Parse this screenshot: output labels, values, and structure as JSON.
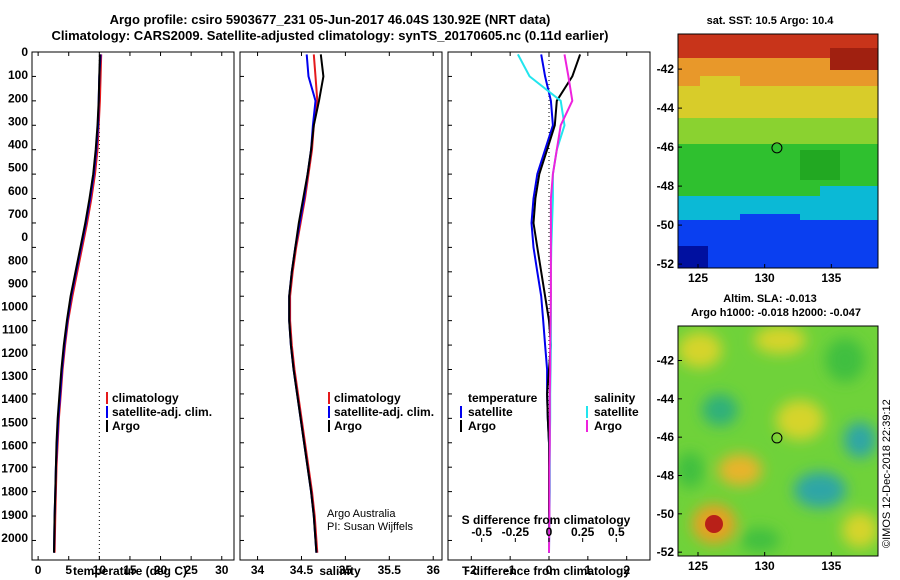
{
  "page": {
    "title_line1": "Argo profile: csiro 5903677_231 05-Jun-2017 46.04S 130.92E (NRT data)",
    "title_line2": "Climatology: CARS2009. Satellite-adjusted climatology: synTS_20170605.nc (0.11d earlier)",
    "side_stamp": "©IMOS 12-Dec-2018 22:39:12"
  },
  "colors": {
    "red": "#e41a1c",
    "blue": "#0000ee",
    "black": "#000000",
    "cyan": "#22e5ee",
    "magenta": "#ee22dd"
  },
  "chart_data": [
    {
      "type": "line",
      "panel": "temperature",
      "xlabel": "temperature (deg C)",
      "xlim": [
        -1,
        32
      ],
      "xticks": [
        0,
        5,
        10,
        15,
        20,
        25,
        30
      ],
      "xtick_labels": [
        "0",
        "5",
        "10",
        "15",
        "20",
        "25",
        "30"
      ],
      "ylim": [
        0,
        2080
      ],
      "yticks": [
        0,
        100,
        200,
        300,
        400,
        500,
        600,
        700,
        800,
        900,
        1000,
        1100,
        1200,
        1300,
        1400,
        1500,
        1600,
        1700,
        1800,
        1900,
        2000
      ],
      "ytick_labels": [
        "0",
        "100",
        "200",
        "300",
        "400",
        "500",
        "600",
        "700",
        "0",
        "800",
        "900",
        "1000",
        "1100",
        "1200",
        "1300",
        "1400",
        "1500",
        "1600",
        "1700",
        "1800",
        "1900",
        "2000"
      ],
      "legend": [
        "climatology",
        "satellite-adj. clim.",
        "Argo"
      ],
      "series": [
        {
          "name": "climatology",
          "color": "red",
          "x": [
            10.3,
            10.2,
            10.1,
            9.9,
            9.7,
            9.3,
            8.7,
            8.0,
            7.2,
            6.4,
            5.6,
            4.9,
            4.4,
            4.0,
            3.7,
            3.4,
            3.2,
            3.0,
            2.9,
            2.8,
            2.7
          ],
          "y": [
            10,
            100,
            200,
            300,
            400,
            500,
            600,
            700,
            800,
            900,
            1000,
            1100,
            1200,
            1300,
            1400,
            1500,
            1600,
            1700,
            1800,
            1900,
            2050
          ]
        },
        {
          "name": "satellite-adj. clim.",
          "color": "blue",
          "x": [
            10.2,
            10.0,
            9.9,
            9.8,
            9.5,
            9.1,
            8.5,
            7.8,
            7.0,
            6.2,
            5.4,
            4.8,
            4.3,
            3.9,
            3.6,
            3.3,
            3.1,
            2.9,
            2.8,
            2.7,
            2.6
          ],
          "y": [
            10,
            100,
            200,
            300,
            400,
            500,
            600,
            700,
            800,
            900,
            1000,
            1100,
            1200,
            1300,
            1400,
            1500,
            1600,
            1700,
            1800,
            1900,
            2050
          ]
        },
        {
          "name": "Argo",
          "color": "black",
          "x": [
            10.1,
            10.0,
            9.9,
            9.7,
            9.4,
            9.0,
            8.4,
            7.7,
            6.9,
            6.1,
            5.3,
            4.7,
            4.2,
            3.8,
            3.5,
            3.2,
            3.0,
            2.9,
            2.8,
            2.7,
            2.6
          ],
          "y": [
            10,
            100,
            200,
            300,
            400,
            500,
            600,
            700,
            800,
            900,
            1000,
            1100,
            1200,
            1300,
            1400,
            1500,
            1600,
            1700,
            1800,
            1900,
            2050
          ]
        }
      ]
    },
    {
      "type": "line",
      "panel": "salinity",
      "xlabel": "salinity",
      "xlim": [
        33.8,
        36.1
      ],
      "xticks": [
        34,
        34.5,
        35,
        35.5,
        36
      ],
      "xtick_labels": [
        "34",
        "34.5",
        "35",
        "35.5",
        "36"
      ],
      "ylim": [
        0,
        2080
      ],
      "legend": [
        "climatology",
        "satellite-adj. clim.",
        "Argo"
      ],
      "annotation": [
        "Argo Australia",
        "PI: Susan Wijffels"
      ],
      "series": [
        {
          "name": "climatology",
          "color": "red",
          "x": [
            34.64,
            34.66,
            34.68,
            34.64,
            34.62,
            34.58,
            34.54,
            34.49,
            34.44,
            34.4,
            34.37,
            34.37,
            34.39,
            34.42,
            34.46,
            34.5,
            34.54,
            34.58,
            34.62,
            34.65,
            34.68
          ],
          "y": [
            10,
            100,
            200,
            300,
            400,
            500,
            600,
            700,
            800,
            900,
            1000,
            1100,
            1200,
            1300,
            1400,
            1500,
            1600,
            1700,
            1800,
            1900,
            2050
          ]
        },
        {
          "name": "satellite-adj. clim.",
          "color": "blue",
          "x": [
            34.56,
            34.58,
            34.66,
            34.63,
            34.61,
            34.57,
            34.53,
            34.48,
            34.43,
            34.39,
            34.36,
            34.36,
            34.38,
            34.41,
            34.45,
            34.49,
            34.53,
            34.57,
            34.61,
            34.64,
            34.67
          ],
          "y": [
            10,
            100,
            200,
            300,
            400,
            500,
            600,
            700,
            800,
            900,
            1000,
            1100,
            1200,
            1300,
            1400,
            1500,
            1600,
            1700,
            1800,
            1900,
            2050
          ]
        },
        {
          "name": "Argo",
          "color": "black",
          "x": [
            34.72,
            34.75,
            34.7,
            34.64,
            34.61,
            34.57,
            34.52,
            34.47,
            34.43,
            34.39,
            34.36,
            34.36,
            34.38,
            34.41,
            34.45,
            34.49,
            34.53,
            34.57,
            34.61,
            34.64,
            34.67
          ],
          "y": [
            10,
            100,
            200,
            300,
            400,
            500,
            600,
            700,
            800,
            900,
            1000,
            1100,
            1200,
            1300,
            1400,
            1500,
            1600,
            1700,
            1800,
            1900,
            2050
          ]
        }
      ]
    },
    {
      "type": "line",
      "panel": "difference",
      "xlabel": "T difference from climatology",
      "xlabel_top": "S difference from climatology",
      "xlim": [
        -2.6,
        2.6
      ],
      "xticks": [
        -2,
        -1,
        0,
        1,
        2
      ],
      "xtick_labels": [
        "-2",
        "-1",
        "0",
        "1",
        "2"
      ],
      "s_ticks": [
        -0.5,
        -0.25,
        0,
        0.25,
        0.5
      ],
      "s_tick_labels": [
        "-0.5",
        "-0.25",
        "0",
        "0.25",
        "0.5"
      ],
      "ylim": [
        0,
        2080
      ],
      "legend_headers": [
        "temperature",
        "salinity"
      ],
      "legend_left": [
        "satellite",
        "Argo"
      ],
      "legend_right": [
        "satellite",
        "Argo"
      ],
      "series": [
        {
          "name": "temperature satellite",
          "color": "blue",
          "x": [
            -0.2,
            -0.1,
            0.05,
            0.1,
            -0.1,
            -0.3,
            -0.4,
            -0.45,
            -0.4,
            -0.3,
            -0.2,
            -0.15,
            -0.1,
            -0.05,
            -0.05,
            -0.03,
            0,
            0,
            0,
            0,
            0
          ],
          "y": [
            10,
            100,
            200,
            300,
            400,
            500,
            600,
            700,
            800,
            900,
            1000,
            1100,
            1200,
            1300,
            1400,
            1500,
            1600,
            1700,
            1800,
            1900,
            2050
          ]
        },
        {
          "name": "temperature Argo",
          "color": "black",
          "x": [
            0.8,
            0.6,
            0.2,
            0.15,
            -0.05,
            -0.25,
            -0.35,
            -0.4,
            -0.3,
            -0.2,
            -0.1,
            0,
            0.05,
            0,
            -0.05,
            -0.03,
            0,
            0,
            0,
            0,
            0
          ],
          "y": [
            10,
            100,
            200,
            300,
            400,
            500,
            600,
            700,
            800,
            900,
            1000,
            1100,
            1200,
            1300,
            1400,
            1500,
            1600,
            1700,
            1800,
            1900,
            2050
          ]
        },
        {
          "name": "salinity satellite",
          "color": "cyan",
          "x": [
            -0.8,
            -0.5,
            0.3,
            0.4,
            0.2,
            0.1,
            0.1,
            0.08,
            0.06,
            0.05,
            0.05,
            0.05,
            0.05,
            0.04,
            0.03,
            0.03,
            0.02,
            0.02,
            0.02,
            0.01,
            0
          ],
          "y": [
            10,
            100,
            200,
            300,
            400,
            500,
            600,
            700,
            800,
            900,
            1000,
            1100,
            1200,
            1300,
            1400,
            1500,
            1600,
            1700,
            1800,
            1900,
            2050
          ]
        },
        {
          "name": "salinity Argo",
          "color": "magenta",
          "x": [
            0.4,
            0.5,
            0.6,
            0.3,
            0.2,
            0.1,
            0.05,
            0.05,
            0.05,
            0.05,
            0.05,
            0.04,
            0.03,
            0.03,
            0.02,
            0.02,
            0.02,
            0.01,
            0.01,
            0.01,
            0
          ],
          "y": [
            10,
            100,
            200,
            300,
            400,
            500,
            600,
            700,
            800,
            900,
            1000,
            1100,
            1200,
            1300,
            1400,
            1500,
            1600,
            1700,
            1800,
            1900,
            2050
          ]
        }
      ]
    },
    {
      "type": "heatmap",
      "panel": "sst-map",
      "title": "sat. SST: 10.5 Argo: 10.4",
      "xticks": [
        125,
        130,
        135
      ],
      "xtick_labels": [
        "125",
        "130",
        "135"
      ],
      "xlim": [
        123.5,
        138.5
      ],
      "ylim": [
        -52.2,
        -40.2
      ],
      "yticks": [
        -42,
        -44,
        -46,
        -48,
        -50,
        -52
      ],
      "ytick_labels": [
        "-42",
        "-44",
        "-46",
        "-48",
        "-50",
        "-52"
      ],
      "marker": {
        "lon": 130.92,
        "lat": -46.04
      }
    },
    {
      "type": "heatmap",
      "panel": "sla-map",
      "title_line1": "Altim. SLA: -0.013",
      "title_line2": "Argo h1000: -0.018 h2000: -0.047",
      "xticks": [
        125,
        130,
        135
      ],
      "xtick_labels": [
        "125",
        "130",
        "135"
      ],
      "xlim": [
        123.5,
        138.5
      ],
      "ylim": [
        -52.2,
        -40.2
      ],
      "yticks": [
        -42,
        -44,
        -46,
        -48,
        -50,
        -52
      ],
      "ytick_labels": [
        "-42",
        "-44",
        "-46",
        "-48",
        "-50",
        "-52"
      ],
      "marker": {
        "lon": 130.92,
        "lat": -46.04
      }
    }
  ]
}
